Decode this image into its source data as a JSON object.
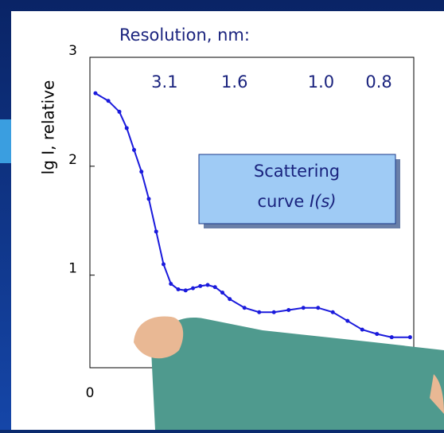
{
  "chart_data": {
    "type": "scatter",
    "title": "Resolution, nm:",
    "y_label": "lg I, relative",
    "annotation": [
      "Scattering",
      "curve",
      "I(s)"
    ],
    "top_ticks": [
      {
        "value": 2.03,
        "label": "3.1"
      },
      {
        "value": 3.93,
        "label": "1.6"
      },
      {
        "value": 6.28,
        "label": "1.0"
      },
      {
        "value": 7.85,
        "label": "0.8"
      }
    ],
    "xlim": [
      0,
      8.8
    ],
    "ylim": [
      0.15,
      3
    ],
    "xticks": [
      0
    ],
    "yticks": [
      1,
      2,
      3
    ],
    "color": "#1a1adc",
    "x": [
      0.15,
      0.5,
      0.8,
      1.0,
      1.2,
      1.4,
      1.6,
      1.8,
      2.0,
      2.2,
      2.4,
      2.6,
      2.8,
      3.0,
      3.2,
      3.4,
      3.6,
      3.8,
      4.2,
      4.6,
      5.0,
      5.4,
      5.8,
      6.2,
      6.6,
      7.0,
      7.4,
      7.8,
      8.2,
      8.7
    ],
    "values": [
      2.67,
      2.6,
      2.5,
      2.35,
      2.15,
      1.95,
      1.7,
      1.4,
      1.1,
      0.92,
      0.87,
      0.86,
      0.88,
      0.9,
      0.91,
      0.89,
      0.84,
      0.78,
      0.7,
      0.66,
      0.66,
      0.68,
      0.7,
      0.7,
      0.66,
      0.58,
      0.5,
      0.46,
      0.43,
      0.43
    ]
  }
}
